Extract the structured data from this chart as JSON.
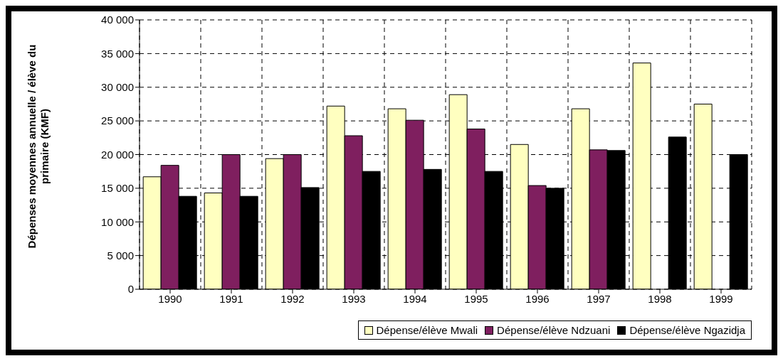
{
  "chart_data": {
    "type": "bar",
    "ylabel": "Dépenses moyennes annuelle / élève du primaire (KMF)",
    "categories": [
      "1990",
      "1991",
      "1992",
      "1993",
      "1994",
      "1995",
      "1996",
      "1997",
      "1998",
      "1999"
    ],
    "series": [
      {
        "name": "Dépense/élève Mwali",
        "color": "#ffffc0",
        "values": [
          16700,
          14300,
          19400,
          27200,
          26800,
          28900,
          21500,
          26800,
          33600,
          27500
        ]
      },
      {
        "name": "Dépense/élève Ndzuani",
        "color": "#7f1f5f",
        "values": [
          18400,
          20000,
          20000,
          22800,
          25100,
          23800,
          15400,
          20700,
          null,
          null
        ]
      },
      {
        "name": "Dépense/élève Ngazidja",
        "color": "#000000",
        "values": [
          13800,
          13800,
          15100,
          17500,
          17800,
          17500,
          15000,
          20600,
          22600,
          20000
        ]
      }
    ],
    "ylim": [
      0,
      40000
    ],
    "yticks": [
      {
        "value": 0,
        "label": "0"
      },
      {
        "value": 5000,
        "label": "5 000"
      },
      {
        "value": 10000,
        "label": "10 000"
      },
      {
        "value": 15000,
        "label": "15 000"
      },
      {
        "value": 20000,
        "label": "20 000"
      },
      {
        "value": 25000,
        "label": "25 000"
      },
      {
        "value": 30000,
        "label": "30 000"
      },
      {
        "value": 35000,
        "label": "35 000"
      },
      {
        "value": 40000,
        "label": "40 000"
      }
    ],
    "grid": true,
    "line_style": "dashed",
    "legend": "bottom"
  }
}
